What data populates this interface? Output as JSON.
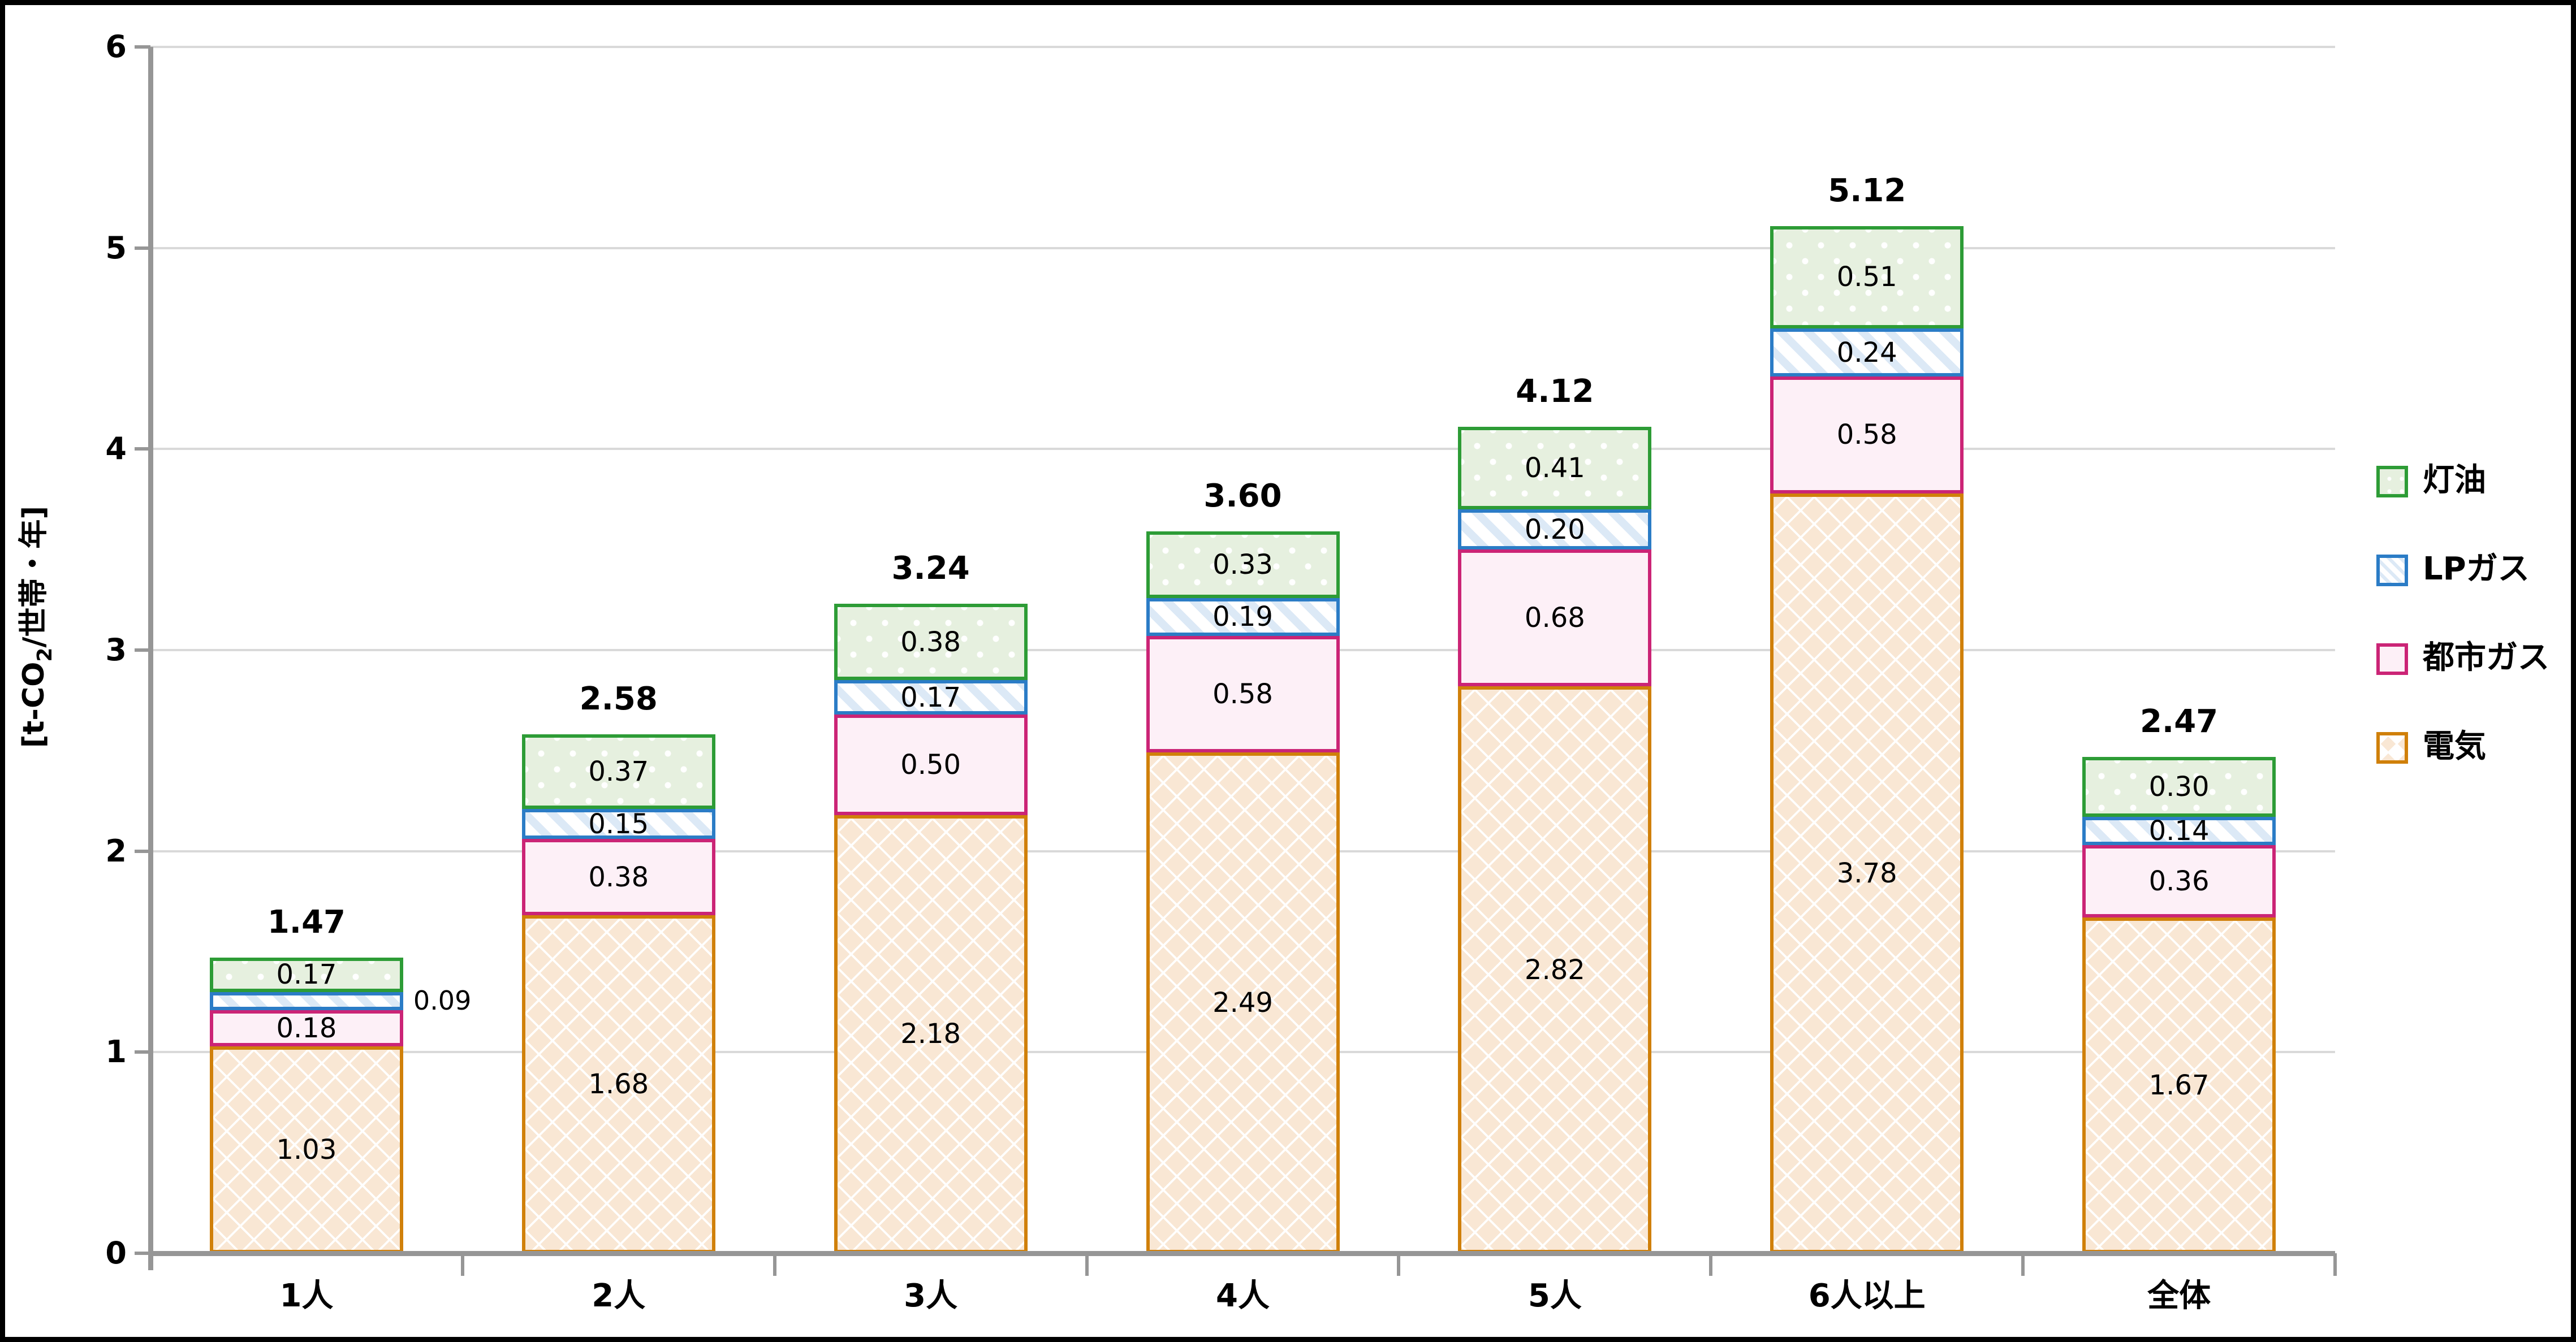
{
  "figure": {
    "background": "#ffffff",
    "frame_border": "#000000",
    "gridline_color": "#d9d9d9",
    "axis_color": "#969696",
    "text_color": "#000000"
  },
  "y_axis": {
    "title_prefix": "[t-CO",
    "title_sub": "2",
    "title_suffix": "/世帯・年]",
    "ticks": [
      "0",
      "1",
      "2",
      "3",
      "4",
      "5",
      "6"
    ]
  },
  "chart_data": {
    "type": "bar",
    "stacked": true,
    "title": "",
    "xlabel": "",
    "ylabel": "[t-CO2/世帯・年]",
    "ylim": [
      0,
      6
    ],
    "ytick_step": 1,
    "grid": true,
    "legend_position": "right",
    "categories": [
      "1人",
      "2人",
      "3人",
      "4人",
      "5人",
      "6人以上",
      "全体"
    ],
    "series": [
      {
        "name": "電気",
        "pattern": "diamond",
        "border_color": "#d0800a",
        "fill_color": "#f9e7d4",
        "values": [
          1.03,
          1.68,
          2.18,
          2.49,
          2.82,
          3.78,
          1.67
        ]
      },
      {
        "name": "都市ガス",
        "pattern": "solid",
        "border_color": "#cb2476",
        "fill_color": "#fdf0f7",
        "values": [
          0.18,
          0.38,
          0.5,
          0.58,
          0.68,
          0.58,
          0.36
        ]
      },
      {
        "name": "LPガス",
        "pattern": "diagonal-stripe",
        "border_color": "#2b7cc6",
        "fill_color": "#dce9f6",
        "values": [
          0.09,
          0.15,
          0.17,
          0.19,
          0.2,
          0.24,
          0.14
        ]
      },
      {
        "name": "灯油",
        "pattern": "dots",
        "border_color": "#2d9c36",
        "fill_color": "#e6f0df",
        "values": [
          0.17,
          0.37,
          0.38,
          0.33,
          0.41,
          0.51,
          0.3
        ]
      }
    ],
    "totals": [
      "1.47",
      "2.58",
      "3.24",
      "3.60",
      "4.12",
      "5.12",
      "2.47"
    ],
    "outside_label": {
      "category_index": 0,
      "series": "LPガス",
      "text": "0.09"
    },
    "legend_order": [
      "灯油",
      "LPガス",
      "都市ガス",
      "電気"
    ]
  }
}
